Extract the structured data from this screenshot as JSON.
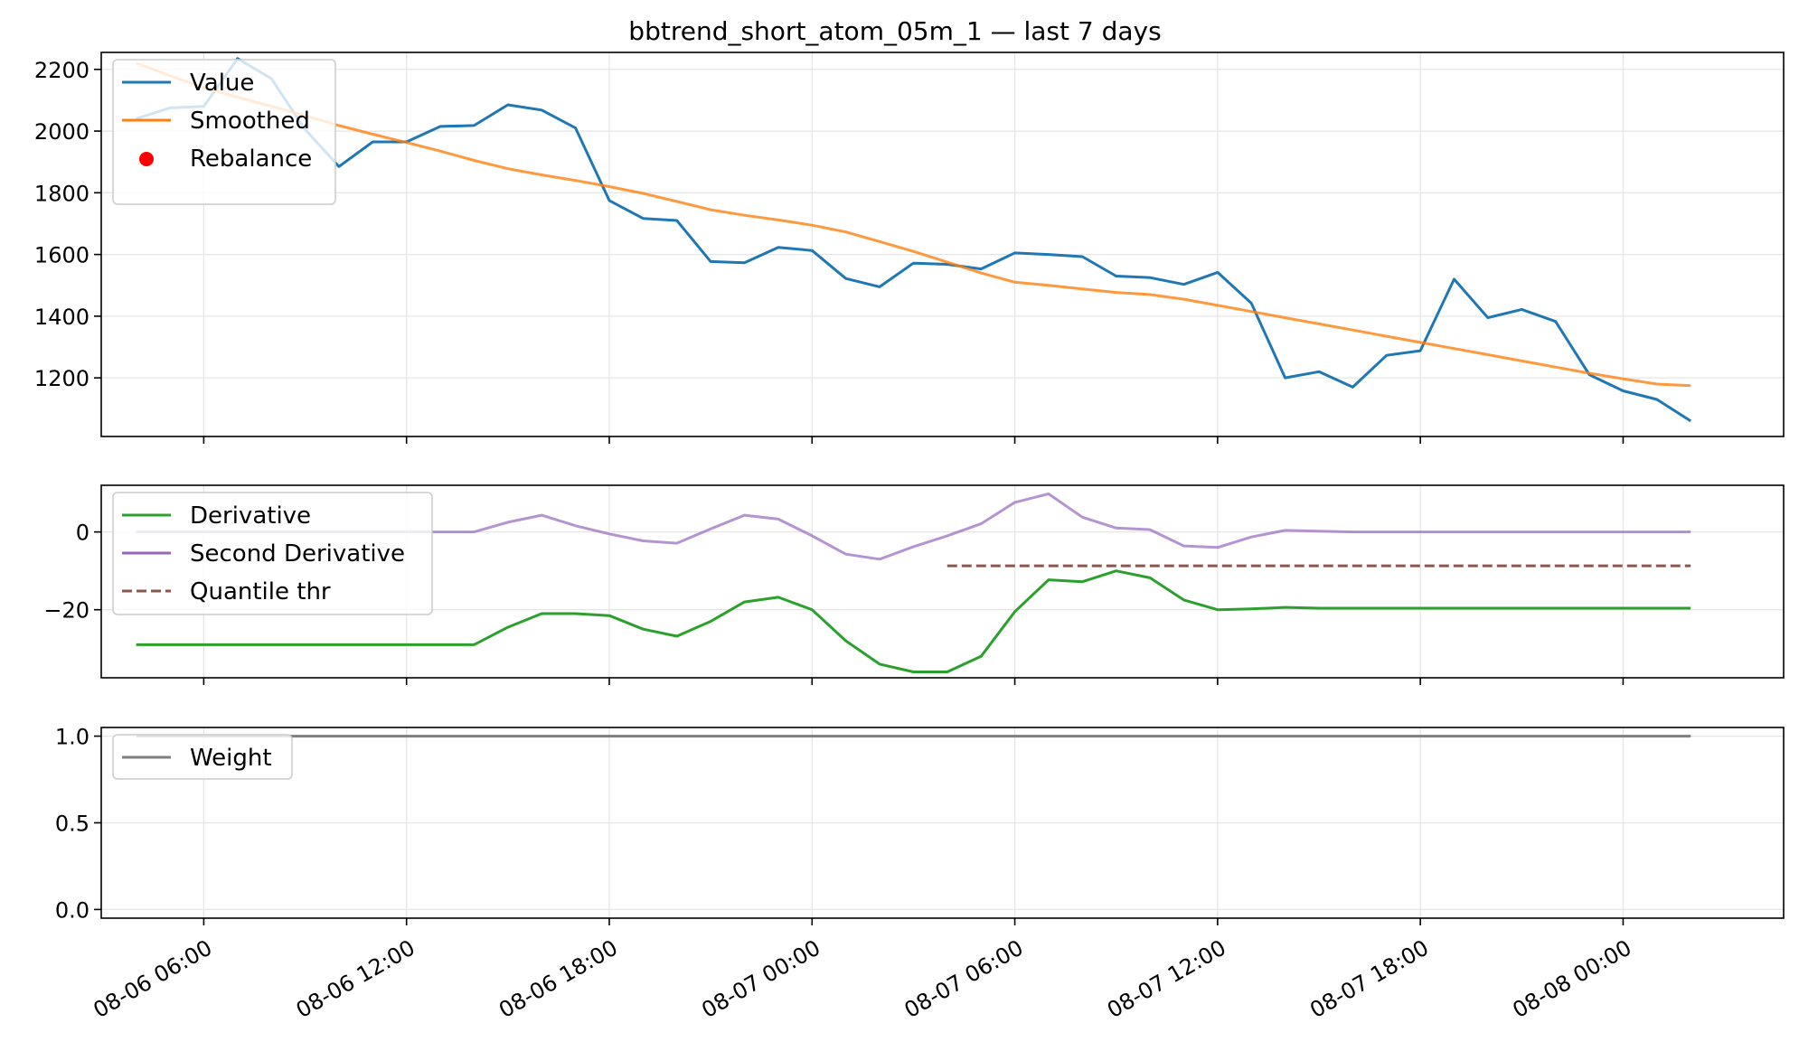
{
  "figure": {
    "title": "bbtrend_short_atom_05m_1 — last 7 days"
  },
  "colors": {
    "value": "#1f77b4",
    "smoothed": "#ff7f0e",
    "rebalance": "#ff0000",
    "derivative": "#2ca02c",
    "second_derivative": "#9467bd",
    "quantile_thr": "#8c564b",
    "weight": "#7f7f7f",
    "grid": "#e6e6e6"
  },
  "chart_data": [
    {
      "type": "line",
      "panel": "top",
      "title": "bbtrend_short_atom_05m_1 — last 7 days",
      "x_format": "MM-DD HH:MM",
      "xlim": [
        "2023-08-06 02:58",
        "2023-08-08 04:45"
      ],
      "ylim": [
        1010,
        2255
      ],
      "yticks": [
        1200,
        1400,
        1600,
        1800,
        2000,
        2200
      ],
      "grid": true,
      "legend": "top-left",
      "series": [
        {
          "name": "Value",
          "color_key": "value",
          "points": [
            [
              "2023-08-06 04:00",
              2040
            ],
            [
              "2023-08-06 05:00",
              2075
            ],
            [
              "2023-08-06 06:00",
              2080
            ],
            [
              "2023-08-06 07:00",
              2235
            ],
            [
              "2023-08-06 08:00",
              2170
            ],
            [
              "2023-08-06 09:00",
              2005
            ],
            [
              "2023-08-06 10:00",
              1885
            ],
            [
              "2023-08-06 11:00",
              1965
            ],
            [
              "2023-08-06 12:00",
              1965
            ],
            [
              "2023-08-06 13:00",
              2015
            ],
            [
              "2023-08-06 14:00",
              2018
            ],
            [
              "2023-08-06 15:00",
              2085
            ],
            [
              "2023-08-06 16:00",
              2068
            ],
            [
              "2023-08-06 17:00",
              2010
            ],
            [
              "2023-08-06 18:00",
              1775
            ],
            [
              "2023-08-06 19:00",
              1717
            ],
            [
              "2023-08-06 20:00",
              1710
            ],
            [
              "2023-08-06 21:00",
              1577
            ],
            [
              "2023-08-06 22:00",
              1573
            ],
            [
              "2023-08-06 23:00",
              1623
            ],
            [
              "2023-08-07 00:00",
              1613
            ],
            [
              "2023-08-07 01:00",
              1522
            ],
            [
              "2023-08-07 02:00",
              1495
            ],
            [
              "2023-08-07 03:00",
              1572
            ],
            [
              "2023-08-07 04:00",
              1568
            ],
            [
              "2023-08-07 05:00",
              1553
            ],
            [
              "2023-08-07 06:00",
              1605
            ],
            [
              "2023-08-07 07:00",
              1600
            ],
            [
              "2023-08-07 08:00",
              1593
            ],
            [
              "2023-08-07 09:00",
              1530
            ],
            [
              "2023-08-07 10:00",
              1525
            ],
            [
              "2023-08-07 11:00",
              1503
            ],
            [
              "2023-08-07 12:00",
              1542
            ],
            [
              "2023-08-07 13:00",
              1442
            ],
            [
              "2023-08-07 14:00",
              1200
            ],
            [
              "2023-08-07 15:00",
              1220
            ],
            [
              "2023-08-07 16:00",
              1170
            ],
            [
              "2023-08-07 17:00",
              1273
            ],
            [
              "2023-08-07 18:00",
              1288
            ],
            [
              "2023-08-07 19:00",
              1520
            ],
            [
              "2023-08-07 20:00",
              1395
            ],
            [
              "2023-08-07 21:00",
              1422
            ],
            [
              "2023-08-07 22:00",
              1383
            ],
            [
              "2023-08-07 23:00",
              1210
            ],
            [
              "2023-08-08 00:00",
              1158
            ],
            [
              "2023-08-08 01:00",
              1130
            ],
            [
              "2023-08-08 02:00",
              1060
            ]
          ]
        },
        {
          "name": "Smoothed",
          "color_key": "smoothed",
          "points": [
            [
              "2023-08-06 04:00",
              2220
            ],
            [
              "2023-08-06 05:00",
              2180
            ],
            [
              "2023-08-06 06:00",
              2140
            ],
            [
              "2023-08-06 07:00",
              2110
            ],
            [
              "2023-08-06 08:00",
              2080
            ],
            [
              "2023-08-06 09:00",
              2050
            ],
            [
              "2023-08-06 10:00",
              2018
            ],
            [
              "2023-08-06 11:00",
              1990
            ],
            [
              "2023-08-06 12:00",
              1963
            ],
            [
              "2023-08-06 13:00",
              1935
            ],
            [
              "2023-08-06 14:00",
              1905
            ],
            [
              "2023-08-06 15:00",
              1878
            ],
            [
              "2023-08-06 16:00",
              1858
            ],
            [
              "2023-08-06 17:00",
              1840
            ],
            [
              "2023-08-06 18:00",
              1820
            ],
            [
              "2023-08-06 19:00",
              1798
            ],
            [
              "2023-08-06 20:00",
              1772
            ],
            [
              "2023-08-06 21:00",
              1745
            ],
            [
              "2023-08-06 22:00",
              1727
            ],
            [
              "2023-08-06 23:00",
              1712
            ],
            [
              "2023-08-07 00:00",
              1695
            ],
            [
              "2023-08-07 01:00",
              1673
            ],
            [
              "2023-08-07 02:00",
              1642
            ],
            [
              "2023-08-07 03:00",
              1610
            ],
            [
              "2023-08-07 04:00",
              1575
            ],
            [
              "2023-08-07 05:00",
              1540
            ],
            [
              "2023-08-07 06:00",
              1510
            ],
            [
              "2023-08-07 07:00",
              1500
            ],
            [
              "2023-08-07 08:00",
              1488
            ],
            [
              "2023-08-07 09:00",
              1477
            ],
            [
              "2023-08-07 10:00",
              1470
            ],
            [
              "2023-08-07 11:00",
              1455
            ],
            [
              "2023-08-07 12:00",
              1435
            ],
            [
              "2023-08-07 13:00",
              1415
            ],
            [
              "2023-08-07 14:00",
              1395
            ],
            [
              "2023-08-07 15:00",
              1375
            ],
            [
              "2023-08-07 16:00",
              1355
            ],
            [
              "2023-08-07 17:00",
              1335
            ],
            [
              "2023-08-07 18:00",
              1315
            ],
            [
              "2023-08-07 19:00",
              1295
            ],
            [
              "2023-08-07 20:00",
              1275
            ],
            [
              "2023-08-07 21:00",
              1255
            ],
            [
              "2023-08-07 22:00",
              1235
            ],
            [
              "2023-08-07 23:00",
              1215
            ],
            [
              "2023-08-08 00:00",
              1197
            ],
            [
              "2023-08-08 01:00",
              1180
            ],
            [
              "2023-08-08 02:00",
              1175
            ]
          ]
        },
        {
          "name": "Rebalance",
          "color_key": "rebalance",
          "marker": "dot",
          "points": []
        }
      ]
    },
    {
      "type": "line",
      "panel": "middle",
      "xlim": [
        "2023-08-06 02:58",
        "2023-08-08 04:45"
      ],
      "ylim": [
        -37.5,
        12
      ],
      "yticks": [
        -20,
        0
      ],
      "grid": true,
      "legend": "top-left",
      "series": [
        {
          "name": "Derivative",
          "color_key": "derivative",
          "points": [
            [
              "2023-08-06 04:00",
              -29
            ],
            [
              "2023-08-06 13:00",
              -29
            ],
            [
              "2023-08-06 14:00",
              -29
            ],
            [
              "2023-08-06 15:00",
              -24.5
            ],
            [
              "2023-08-06 16:00",
              -21
            ],
            [
              "2023-08-06 17:00",
              -21
            ],
            [
              "2023-08-06 18:00",
              -21.5
            ],
            [
              "2023-08-06 19:00",
              -25
            ],
            [
              "2023-08-06 20:00",
              -26.8
            ],
            [
              "2023-08-06 21:00",
              -23
            ],
            [
              "2023-08-06 22:00",
              -18
            ],
            [
              "2023-08-06 23:00",
              -16.8
            ],
            [
              "2023-08-07 00:00",
              -20
            ],
            [
              "2023-08-07 01:00",
              -28
            ],
            [
              "2023-08-07 02:00",
              -34
            ],
            [
              "2023-08-07 03:00",
              -36
            ],
            [
              "2023-08-07 04:00",
              -36
            ],
            [
              "2023-08-07 05:00",
              -32
            ],
            [
              "2023-08-07 06:00",
              -20.5
            ],
            [
              "2023-08-07 07:00",
              -12.3
            ],
            [
              "2023-08-07 08:00",
              -12.8
            ],
            [
              "2023-08-07 09:00",
              -10
            ],
            [
              "2023-08-07 10:00",
              -11.8
            ],
            [
              "2023-08-07 11:00",
              -17.5
            ],
            [
              "2023-08-07 12:00",
              -20
            ],
            [
              "2023-08-07 13:00",
              -19.8
            ],
            [
              "2023-08-07 14:00",
              -19.4
            ],
            [
              "2023-08-07 15:00",
              -19.6
            ],
            [
              "2023-08-08 02:00",
              -19.6
            ]
          ]
        },
        {
          "name": "Second Derivative",
          "color_key": "second_derivative",
          "points": [
            [
              "2023-08-06 04:00",
              0
            ],
            [
              "2023-08-06 13:00",
              0
            ],
            [
              "2023-08-06 14:00",
              0
            ],
            [
              "2023-08-06 15:00",
              2.5
            ],
            [
              "2023-08-06 16:00",
              4.3
            ],
            [
              "2023-08-06 17:00",
              1.6
            ],
            [
              "2023-08-06 18:00",
              -0.5
            ],
            [
              "2023-08-06 19:00",
              -2.3
            ],
            [
              "2023-08-06 20:00",
              -2.9
            ],
            [
              "2023-08-06 21:00",
              0.8
            ],
            [
              "2023-08-06 22:00",
              4.3
            ],
            [
              "2023-08-06 23:00",
              3.3
            ],
            [
              "2023-08-07 00:00",
              -1
            ],
            [
              "2023-08-07 01:00",
              -5.7
            ],
            [
              "2023-08-07 02:00",
              -7
            ],
            [
              "2023-08-07 03:00",
              -3.8
            ],
            [
              "2023-08-07 04:00",
              -1
            ],
            [
              "2023-08-07 05:00",
              2.1
            ],
            [
              "2023-08-07 06:00",
              7.6
            ],
            [
              "2023-08-07 07:00",
              9.8
            ],
            [
              "2023-08-07 08:00",
              3.8
            ],
            [
              "2023-08-07 09:00",
              1
            ],
            [
              "2023-08-07 10:00",
              0.6
            ],
            [
              "2023-08-07 11:00",
              -3.6
            ],
            [
              "2023-08-07 12:00",
              -4
            ],
            [
              "2023-08-07 13:00",
              -1.3
            ],
            [
              "2023-08-07 14:00",
              0.4
            ],
            [
              "2023-08-07 15:00",
              0.2
            ],
            [
              "2023-08-07 16:00",
              0
            ],
            [
              "2023-08-08 02:00",
              0
            ]
          ]
        },
        {
          "name": "Quantile thr",
          "color_key": "quantile_thr",
          "dashed": true,
          "points": [
            [
              "2023-08-07 04:00",
              -8.7
            ],
            [
              "2023-08-08 02:00",
              -8.7
            ]
          ]
        }
      ]
    },
    {
      "type": "line",
      "panel": "bottom",
      "xlim": [
        "2023-08-06 02:58",
        "2023-08-08 04:45"
      ],
      "ylim": [
        -0.05,
        1.05
      ],
      "yticks": [
        0.0,
        0.5,
        1.0
      ],
      "grid": true,
      "legend": "top-left",
      "series": [
        {
          "name": "Weight",
          "color_key": "weight",
          "points": [
            [
              "2023-08-06 04:00",
              1.0
            ],
            [
              "2023-08-08 02:00",
              1.0
            ]
          ]
        }
      ]
    }
  ]
}
